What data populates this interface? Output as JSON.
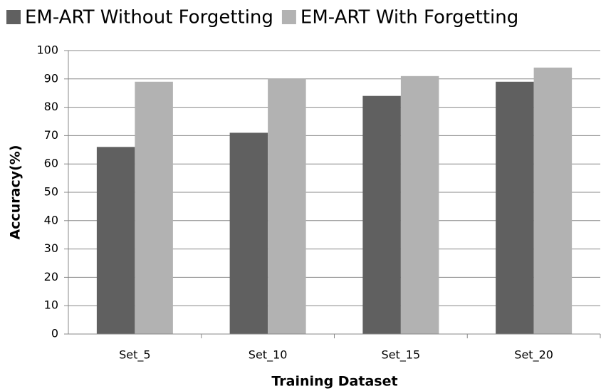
{
  "chart_data": {
    "type": "bar",
    "categories": [
      "Set_5",
      "Set_10",
      "Set_15",
      "Set_20"
    ],
    "series": [
      {
        "name": "EM-ART Without Forgetting",
        "color": "#606060",
        "values": [
          66,
          71,
          84,
          89
        ]
      },
      {
        "name": "EM-ART With Forgetting",
        "color": "#b2b2b2",
        "values": [
          89,
          90,
          91,
          94
        ]
      }
    ],
    "x_label": "Training Dataset",
    "y_label": "Accuracy(%)",
    "ylim": [
      0,
      100
    ],
    "yticks": [
      0,
      10,
      20,
      30,
      40,
      50,
      60,
      70,
      80,
      90,
      100
    ],
    "grid": true,
    "legend": "top"
  }
}
